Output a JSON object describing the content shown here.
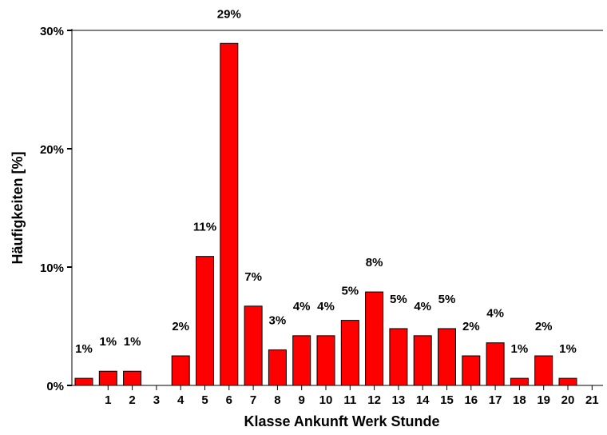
{
  "chart_data": {
    "type": "bar",
    "title": "",
    "xlabel": "Klasse Ankunft Werk Stunde",
    "ylabel": "Häufigkeiten [%]",
    "ylim": [
      0,
      30
    ],
    "y_ticks": [
      "0%",
      "10%",
      "20%",
      "30%"
    ],
    "x_tick_labels": [
      "1",
      "2",
      "3",
      "4",
      "5",
      "6",
      "7",
      "8",
      "9",
      "10",
      "11",
      "12",
      "13",
      "14",
      "15",
      "16",
      "17",
      "18",
      "19",
      "20",
      "21"
    ],
    "grid": false,
    "bar_color": "#ff0000",
    "bars": [
      {
        "x": 0,
        "value": 0.6,
        "label": "1%"
      },
      {
        "x": 1,
        "value": 1.2,
        "label": "1%"
      },
      {
        "x": 2,
        "value": 1.2,
        "label": "1%"
      },
      {
        "x": 4,
        "value": 2.5,
        "label": "2%"
      },
      {
        "x": 5,
        "value": 10.9,
        "label": "11%"
      },
      {
        "x": 6,
        "value": 28.9,
        "label": "29%"
      },
      {
        "x": 7,
        "value": 6.7,
        "label": "7%"
      },
      {
        "x": 8,
        "value": 3.0,
        "label": "3%"
      },
      {
        "x": 9,
        "value": 4.2,
        "label": "4%"
      },
      {
        "x": 10,
        "value": 4.2,
        "label": "4%"
      },
      {
        "x": 11,
        "value": 5.5,
        "label": "5%"
      },
      {
        "x": 12,
        "value": 7.9,
        "label": "8%"
      },
      {
        "x": 13,
        "value": 4.8,
        "label": "5%"
      },
      {
        "x": 14,
        "value": 4.2,
        "label": "4%"
      },
      {
        "x": 15,
        "value": 4.8,
        "label": "5%"
      },
      {
        "x": 16,
        "value": 2.5,
        "label": "2%"
      },
      {
        "x": 17,
        "value": 3.6,
        "label": "4%"
      },
      {
        "x": 18,
        "value": 0.6,
        "label": "1%"
      },
      {
        "x": 19,
        "value": 2.5,
        "label": "2%"
      },
      {
        "x": 20,
        "value": 0.6,
        "label": "1%"
      }
    ]
  }
}
